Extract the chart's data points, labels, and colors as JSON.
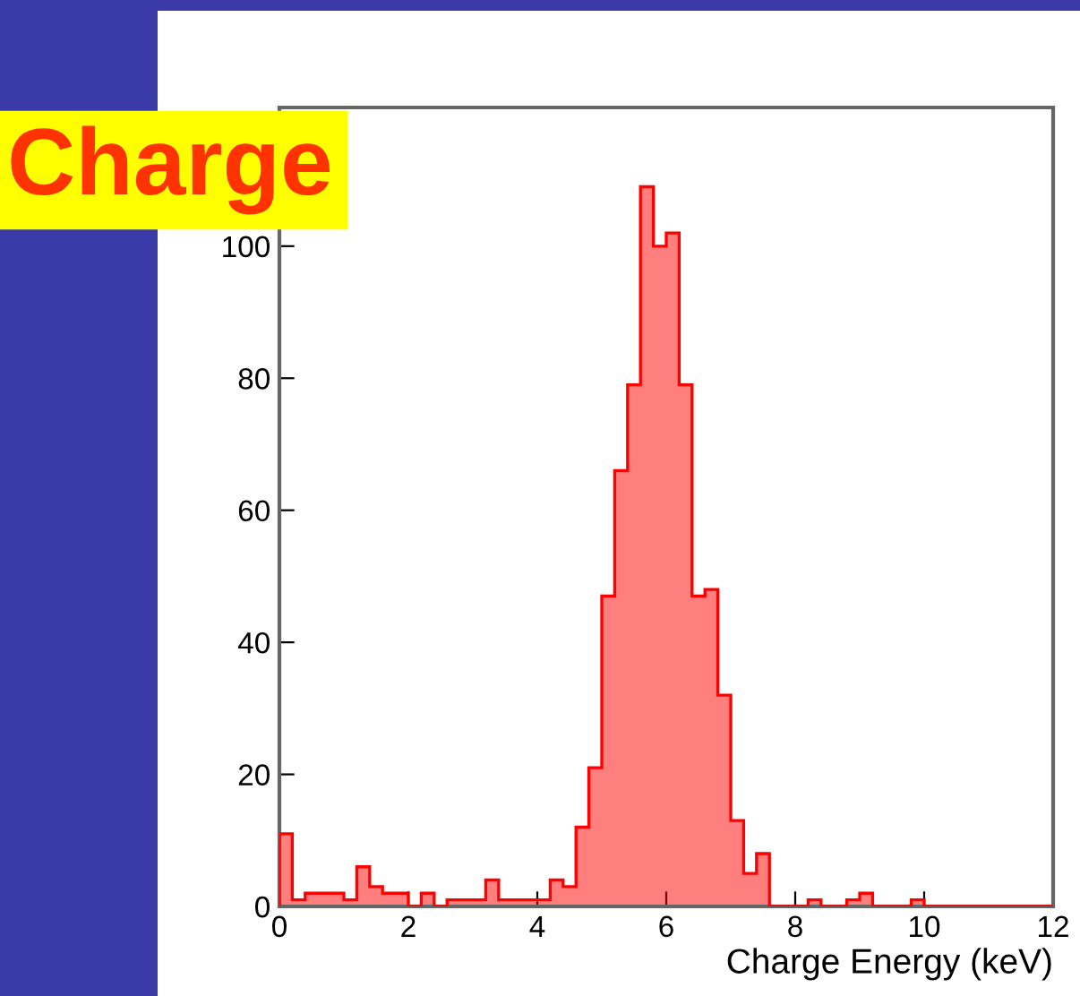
{
  "chart_data": {
    "type": "histogram",
    "xlabel": "Charge Energy (keV)",
    "annotations": [
      "Charge"
    ],
    "bins": [
      0,
      0.2,
      0.4,
      0.6,
      0.8,
      1.0,
      1.2,
      1.4,
      1.6,
      1.8,
      2.0,
      2.2,
      2.4,
      2.6,
      2.8,
      3.0,
      3.2,
      3.4,
      3.6,
      3.8,
      4.0,
      4.2,
      4.4,
      4.6,
      4.8,
      5.0,
      5.2,
      5.4,
      5.6,
      5.8,
      6.0,
      6.2,
      6.4,
      6.6,
      6.8,
      7.0,
      7.2,
      7.4,
      7.6,
      7.8,
      8.0,
      8.2,
      8.4,
      8.6,
      8.8,
      9.0,
      9.2,
      9.4,
      9.6,
      9.8,
      10.0,
      10.2,
      10.4,
      10.6,
      10.8,
      11.0,
      11.2,
      11.4,
      11.6,
      11.8,
      12.0
    ],
    "values": [
      11,
      1,
      2,
      2,
      2,
      1,
      6,
      3,
      2,
      2,
      0,
      2,
      0,
      1,
      1,
      1,
      4,
      1,
      1,
      1,
      1,
      4,
      3,
      12,
      21,
      47,
      66,
      79,
      109,
      100,
      102,
      79,
      47,
      48,
      32,
      13,
      5,
      8,
      0,
      0,
      0,
      1,
      0,
      0,
      1,
      2,
      0,
      0,
      0,
      1,
      0,
      0,
      0,
      0,
      0,
      0,
      0,
      0,
      0,
      0
    ],
    "color": "#ff0000",
    "xlim": [
      0,
      12
    ],
    "xticks": [
      0,
      2,
      4,
      6,
      8,
      10,
      12
    ],
    "ylim": [
      0,
      121
    ],
    "yticks": [
      0,
      20,
      40,
      60,
      80,
      100
    ]
  }
}
